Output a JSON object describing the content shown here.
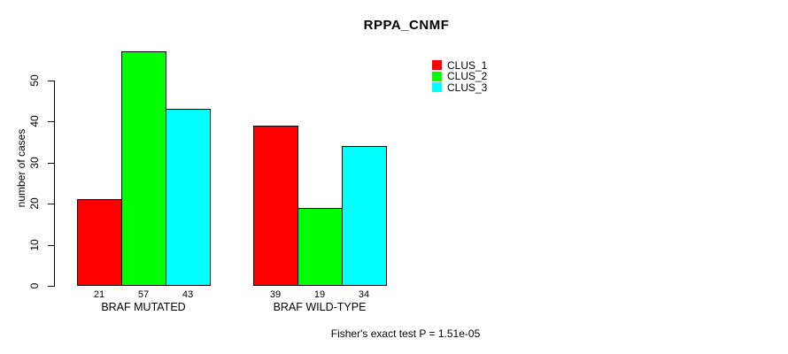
{
  "chart_data": {
    "type": "bar",
    "title": "RPPA_CNMF",
    "ylabel": "number of cases",
    "xlabel": "",
    "categories": [
      "BRAF MUTATED",
      "BRAF WILD-TYPE"
    ],
    "series": [
      {
        "name": "CLUS_1",
        "color": "#ff0000",
        "values": [
          21,
          39
        ]
      },
      {
        "name": "CLUS_2",
        "color": "#00ff00",
        "values": [
          57,
          19
        ]
      },
      {
        "name": "CLUS_3",
        "color": "#00ffff",
        "values": [
          43,
          34
        ]
      }
    ],
    "yticks": [
      0,
      10,
      20,
      30,
      40,
      50
    ],
    "ylim": [
      0,
      57
    ],
    "bar_value_labels_shown": true,
    "legend_position": "top-right",
    "grid": false,
    "annotation": "Fisher's exact test P = 1.51e-05"
  },
  "colors": {
    "background": "#ffffff",
    "axis": "#000000",
    "text": "#000000",
    "clus_1": "#ff0000",
    "clus_2": "#00ff00",
    "clus_3": "#00ffff"
  }
}
